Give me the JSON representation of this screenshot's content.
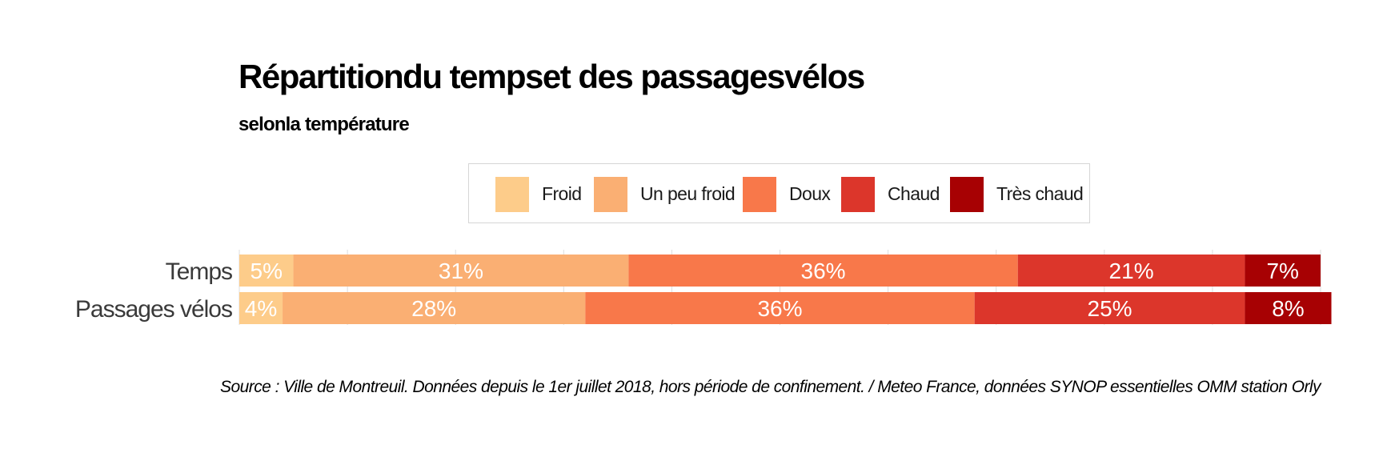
{
  "title": "Répartitiondu tempset des passagesvélos",
  "subtitle": "selonla température",
  "source": "Source : Ville de Montreuil. Données depuis le 1er juillet 2018, hors période de confinement. / Meteo France, données SYNOP essentielles OMM station Orly",
  "legend": {
    "position": "top",
    "items": [
      {
        "label": "Froid",
        "color": "#FDCC8A"
      },
      {
        "label": "Un peu froid",
        "color": "#FAAF73"
      },
      {
        "label": "Doux",
        "color": "#F8784A"
      },
      {
        "label": "Chaud",
        "color": "#DC362B"
      },
      {
        "label": "Très chaud",
        "color": "#A70103"
      }
    ]
  },
  "chart_data": {
    "type": "bar",
    "orientation": "horizontal",
    "stacked": true,
    "categories": [
      "Temps",
      "Passages vélos"
    ],
    "series": [
      {
        "name": "Froid",
        "color": "#FDCC8A",
        "values": [
          5,
          4
        ],
        "labels": [
          "5%",
          "4%"
        ]
      },
      {
        "name": "Un peu froid",
        "color": "#FAAF73",
        "values": [
          31,
          28
        ],
        "labels": [
          "31%",
          "28%"
        ]
      },
      {
        "name": "Doux",
        "color": "#F8784A",
        "values": [
          36,
          36
        ],
        "labels": [
          "36%",
          "36%"
        ]
      },
      {
        "name": "Chaud",
        "color": "#DC362B",
        "values": [
          21,
          25
        ],
        "labels": [
          "21%",
          "25%"
        ]
      },
      {
        "name": "Très chaud",
        "color": "#A70103",
        "values": [
          7,
          8
        ],
        "labels": [
          "7%",
          "8%"
        ]
      }
    ],
    "xlim": [
      0,
      100
    ],
    "xlabel": "",
    "ylabel": "",
    "grid": "vertical",
    "tick_labels_x": false
  }
}
